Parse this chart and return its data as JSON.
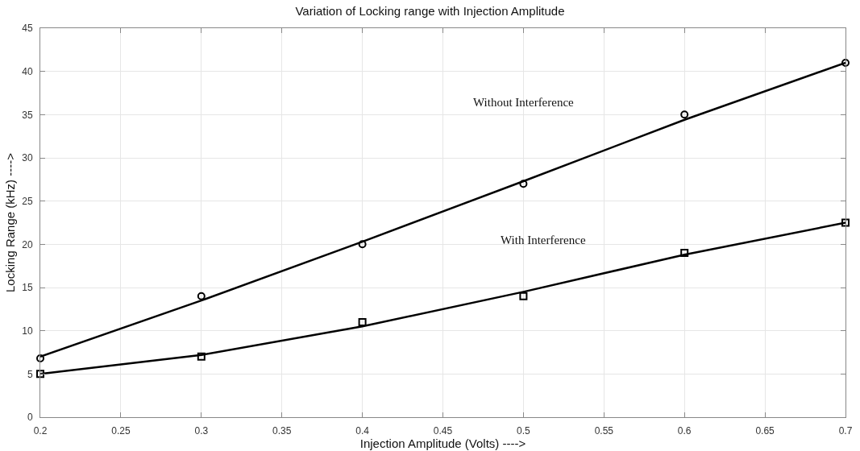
{
  "chart_data": {
    "type": "scatter",
    "title": "Variation of Locking range with Injection Amplitude",
    "xlabel": "Injection Amplitude (Volts) ---->",
    "ylabel": "Locking Range (kHz) ---->",
    "x": [
      0.2,
      0.3,
      0.4,
      0.5,
      0.6,
      0.7
    ],
    "series": [
      {
        "marker": "circle",
        "color": "#000000",
        "values": [
          6.8,
          14,
          20,
          27,
          35,
          41
        ]
      },
      {
        "marker": "square",
        "color": "#000000",
        "values": [
          5,
          7,
          11,
          14,
          19,
          22.5
        ]
      },
      {
        "type": "line",
        "marker": "none",
        "color": "#000000",
        "values": [
          7,
          13.5,
          20.3,
          27.3,
          34.4,
          41
        ]
      },
      {
        "type": "line",
        "marker": "none",
        "color": "#000000",
        "values": [
          5,
          7.2,
          10.5,
          14.5,
          18.8,
          22.5
        ]
      }
    ],
    "annotations": [
      "Without Interference",
      "With Interference"
    ],
    "xlim": [
      0.2,
      0.7
    ],
    "xticks": [
      0.2,
      0.25,
      0.3,
      0.35,
      0.4,
      0.45,
      0.5,
      0.55,
      0.6,
      0.65,
      0.7
    ],
    "ylim": [
      0,
      45
    ],
    "yticks": [
      0,
      5,
      10,
      15,
      20,
      25,
      30,
      35,
      40,
      45
    ],
    "grid": true
  }
}
